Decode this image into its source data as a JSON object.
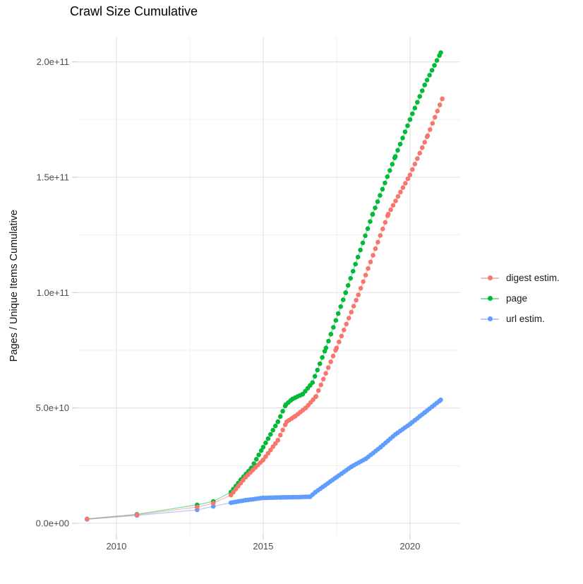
{
  "title": "Crawl Size Cumulative",
  "chart_data": {
    "type": "scatter",
    "title": "Crawl Size Cumulative",
    "xlabel": "",
    "ylabel": "Pages / Unique Items Cumulative",
    "x_unit": "year",
    "y_unit": "items (values stored in billions, 1e9)",
    "xlim": [
      2008.68,
      2021.71
    ],
    "ylim_billions": [
      -4.9,
      210.9
    ],
    "grid": true,
    "legend_position": "right",
    "x_ticks": {
      "major": [
        2010,
        2015,
        2020
      ],
      "minor": [
        2012.5,
        2017.5
      ],
      "labels": [
        "2010",
        "2015",
        "2020"
      ]
    },
    "y_ticks": {
      "major_billions": [
        0,
        50,
        100,
        150,
        200
      ],
      "minor_billions": [
        25,
        75,
        125,
        175
      ],
      "labels": [
        "0.0e+00",
        "5.0e+10",
        "1.0e+11",
        "1.5e+11",
        "2.0e+11"
      ]
    },
    "point_rendering": {
      "note": "dots are monthly crawls; rendered by interpolating sampled points at monthly cadence from 1 Dec 2013 onward",
      "dot_cadence_years": 0.0833,
      "densify_from_year": 2013.85
    },
    "series": [
      {
        "name": "digest estim.",
        "color": "#F8766D",
        "z": 2,
        "points_year_billions": [
          [
            2009.0,
            1.8
          ],
          [
            2010.7,
            3.7
          ],
          [
            2012.75,
            7.0
          ],
          [
            2013.3,
            8.7
          ],
          [
            2013.9,
            12.2
          ],
          [
            2014.4,
            20
          ],
          [
            2015.0,
            27.5
          ],
          [
            2015.5,
            36
          ],
          [
            2015.8,
            44
          ],
          [
            2016.1,
            46.5
          ],
          [
            2016.45,
            50
          ],
          [
            2016.8,
            55
          ],
          [
            2017.5,
            76
          ],
          [
            2018.24,
            99
          ],
          [
            2019.26,
            134
          ],
          [
            2020.0,
            151
          ],
          [
            2020.6,
            168
          ],
          [
            2021.1,
            184
          ]
        ]
      },
      {
        "name": "page",
        "color": "#00BA38",
        "z": 0,
        "points_year_billions": [
          [
            2009.0,
            1.9
          ],
          [
            2010.7,
            3.9
          ],
          [
            2012.75,
            8.0
          ],
          [
            2013.3,
            9.5
          ],
          [
            2013.9,
            13.5
          ],
          [
            2014.25,
            19
          ],
          [
            2014.6,
            24
          ],
          [
            2015.0,
            33
          ],
          [
            2015.5,
            44
          ],
          [
            2015.77,
            51.4
          ],
          [
            2016.0,
            53.9
          ],
          [
            2016.35,
            56
          ],
          [
            2016.68,
            61
          ],
          [
            2017.14,
            76
          ],
          [
            2017.81,
            100
          ],
          [
            2018.73,
            134
          ],
          [
            2019.5,
            159
          ],
          [
            2020.0,
            175
          ],
          [
            2020.5,
            190
          ],
          [
            2021.05,
            204
          ]
        ]
      },
      {
        "name": "url estim.",
        "color": "#619CFF",
        "z": 1,
        "points_year_billions": [
          [
            2009.0,
            1.7
          ],
          [
            2010.7,
            3.4
          ],
          [
            2012.75,
            5.8
          ],
          [
            2013.3,
            7.3
          ],
          [
            2013.9,
            8.9
          ],
          [
            2014.4,
            10.0
          ],
          [
            2015.0,
            11.0
          ],
          [
            2015.6,
            11.2
          ],
          [
            2016.1,
            11.3
          ],
          [
            2016.6,
            11.5
          ],
          [
            2016.78,
            13.5
          ],
          [
            2017.5,
            20
          ],
          [
            2018.0,
            24.5
          ],
          [
            2018.5,
            28
          ],
          [
            2019.0,
            33
          ],
          [
            2019.5,
            38.5
          ],
          [
            2020.0,
            43
          ],
          [
            2020.5,
            48
          ],
          [
            2021.05,
            53.5
          ]
        ]
      }
    ]
  },
  "legend": {
    "items": [
      {
        "label": "digest estim.",
        "color": "#F8766D"
      },
      {
        "label": "page",
        "color": "#00BA38"
      },
      {
        "label": "url estim.",
        "color": "#619CFF"
      }
    ]
  },
  "style_colors": {
    "grid_major": "#E4E4E4",
    "grid_minor": "#F0F0F0",
    "tick_mark": "#D2D2D2",
    "tick_label": "#4D4D4D"
  }
}
